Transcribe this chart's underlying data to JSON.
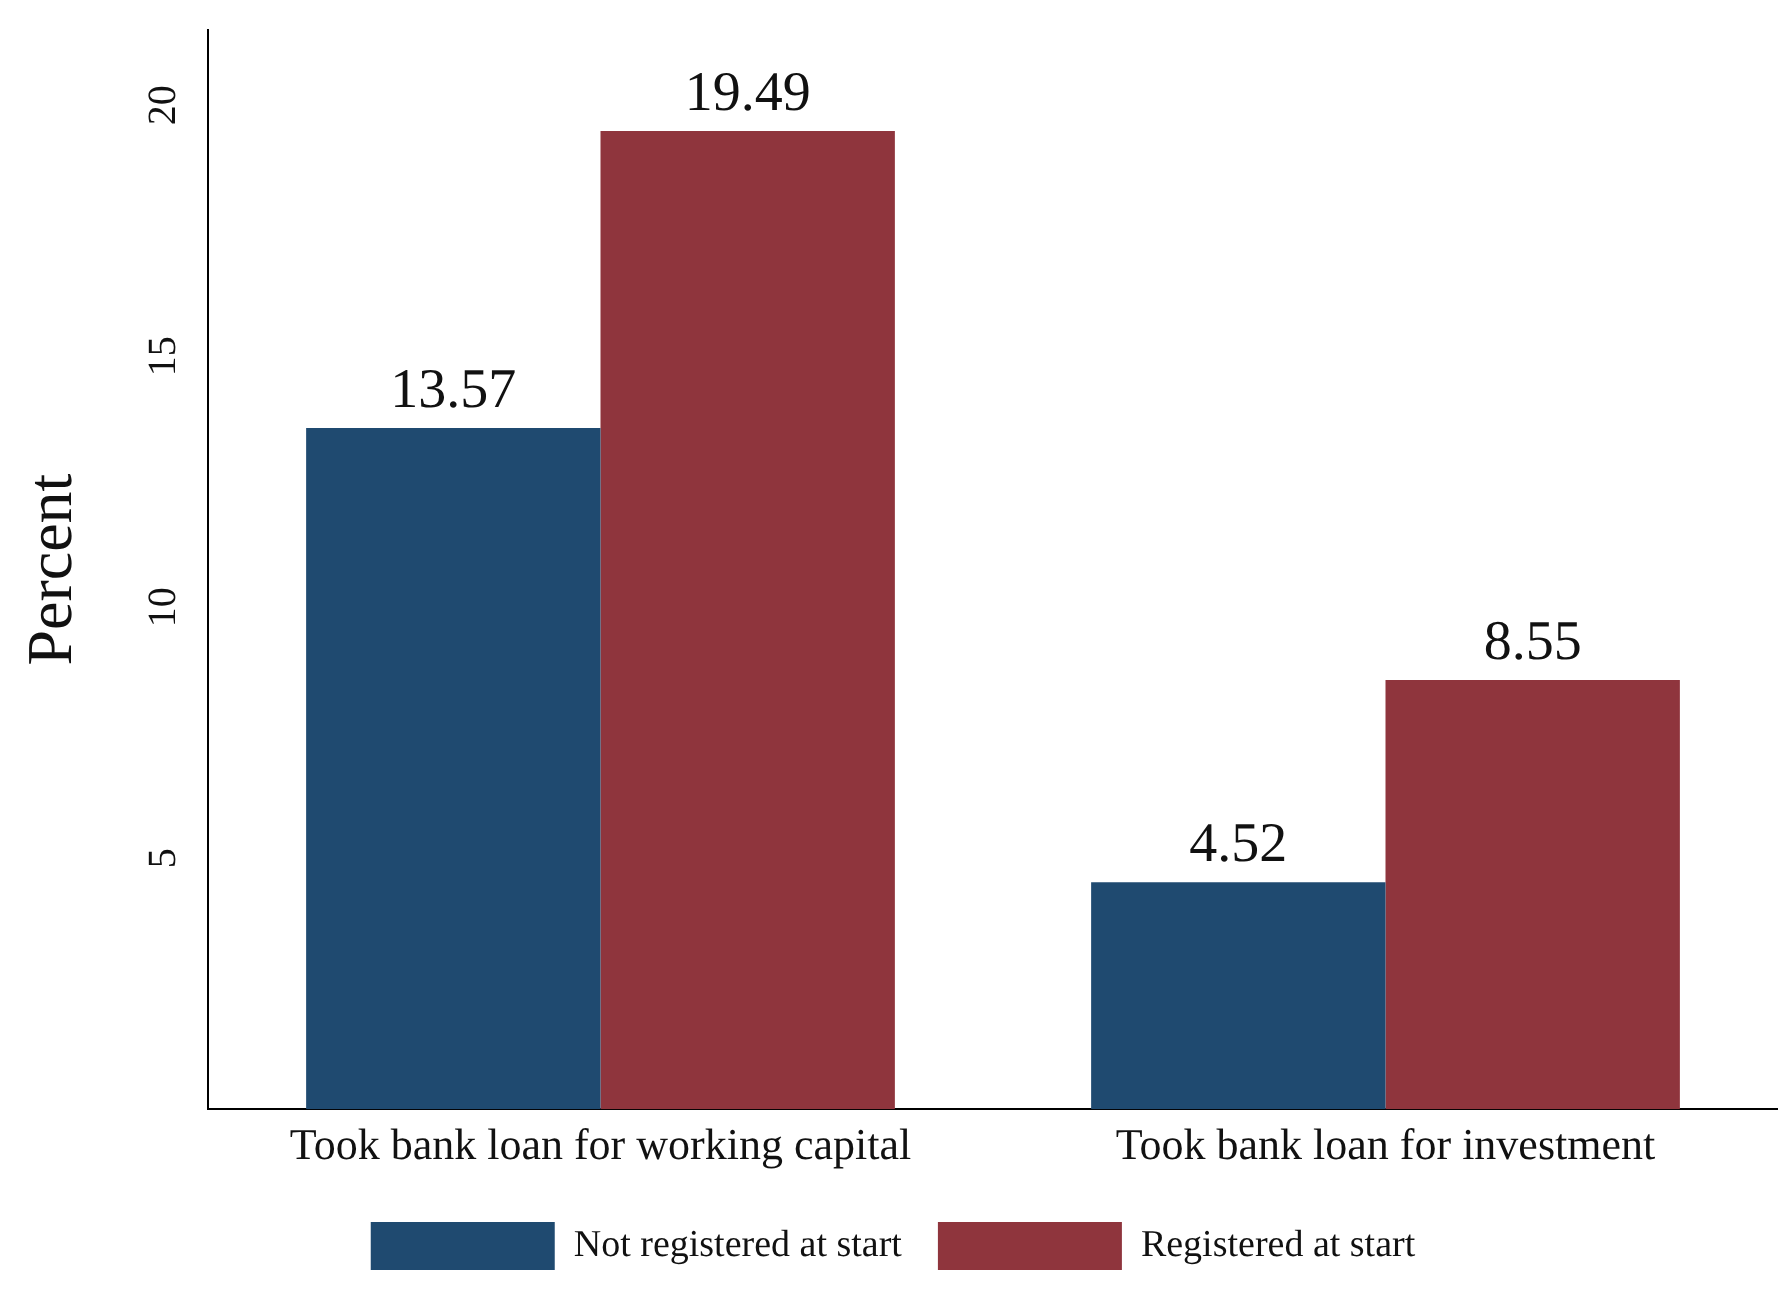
{
  "chart_data": {
    "type": "bar",
    "ylabel": "Percent",
    "categories": [
      "Took bank loan for working capital",
      "Took bank loan for investment"
    ],
    "series": [
      {
        "name": "Not registered at start",
        "color": "#1f4a70",
        "values": [
          13.57,
          4.52
        ]
      },
      {
        "name": "Registered at start",
        "color": "#8f353d",
        "values": [
          19.49,
          8.55
        ]
      }
    ],
    "ylim": [
      0,
      21.5
    ],
    "yticks": [
      5,
      10,
      15,
      20
    ],
    "grid": false,
    "legend": "bottom",
    "data_labels": true
  }
}
